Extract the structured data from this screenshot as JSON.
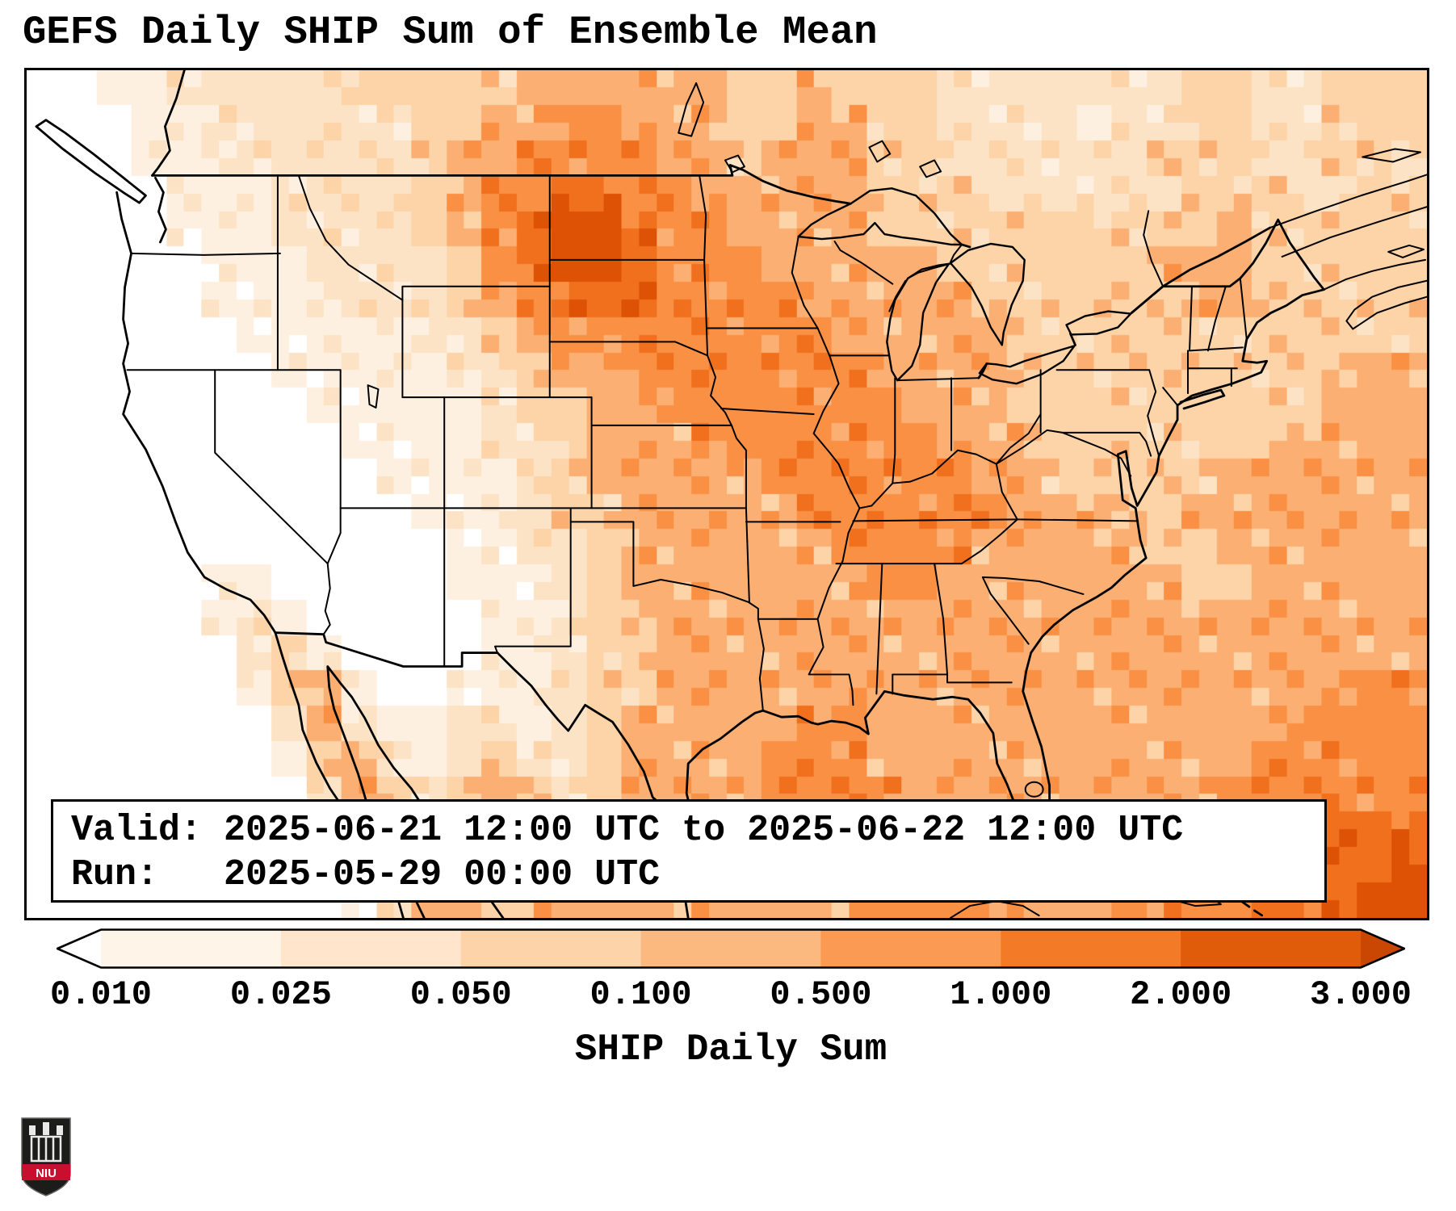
{
  "title": "GEFS Daily SHIP Sum of Ensemble Mean",
  "info_box": {
    "line1": "Valid: 2025-06-21 12:00 UTC to 2025-06-22 12:00 UTC",
    "line2": "Run:   2025-05-29 00:00 UTC"
  },
  "colorbar": {
    "label": "SHIP Daily Sum",
    "tick_labels": [
      "0.010",
      "0.025",
      "0.050",
      "0.100",
      "0.500",
      "1.000",
      "2.000",
      "3.000"
    ],
    "extend": "both",
    "segment_colors": [
      "#ffffff",
      "#fff4e8",
      "#fee5cb",
      "#fdd4aa",
      "#fcb97f",
      "#fb9a52",
      "#f37b28",
      "#e15c0a",
      "#c94702"
    ]
  },
  "logo": {
    "text": "NIU",
    "banner_color": "#c8102e",
    "shield_color": "#1c1c1b"
  },
  "chart_data": {
    "type": "heatmap",
    "title": "GEFS Daily SHIP Sum of Ensemble Mean",
    "field": "SHIP Daily Sum",
    "region": "CONUS and surroundings",
    "valid": "2025-06-21 12:00 UTC to 2025-06-22 12:00 UTC",
    "run": "2025-05-29 00:00 UTC",
    "levels": [
      0.01,
      0.025,
      0.05,
      0.1,
      0.5,
      1.0,
      2.0,
      3.0
    ],
    "colormap": "Oranges",
    "palette": [
      "#ffffff",
      "#fef0e0",
      "#fde3c6",
      "#fdd3a8",
      "#fbaf73",
      "#fa9043",
      "#f1701e",
      "#dd5205"
    ],
    "grid_encoding": "Each row is 40 columns west-to-east of intensity levels 0-7 indexing palette; row 0 is the northern map edge.",
    "grid": [
      "0011222223333344444433433322222223322333",
      "0001122222233445544433443322221223322333",
      "0001112222234455554434443322222233322332",
      "0000111222234556655444443332222223332233",
      "0000111222234567765544443333333333433333",
      "0000011122223567765554444433333344433333",
      "0000011112223456665555444443333334433333",
      "0000001111122345555555544444333333333333",
      "0000000111112234455555554444333333333344",
      "0000000011111233445555555444333333333444",
      "0000000001111223444555555544433333334444",
      "0000000000111123444445555554433333444444",
      "0000000000011123344444555555444334444444",
      "0000000000001122344444455554444433444444",
      "0000011000001112344444445544444443344444",
      "0000012100000112334444444444444444444444",
      "0000002310000112334444444444444444444444",
      "0000001341001112334444444444444444444455",
      "0000000242112212344444554444444444445555",
      "0000000134212322344445554444444444455555",
      "0000000024323432344445555444444444555555",
      "0000000013432443344444555544444445555666",
      "0000000002343344344444455554444455556667",
      "0000000001244344444444445555444555566677"
    ]
  }
}
